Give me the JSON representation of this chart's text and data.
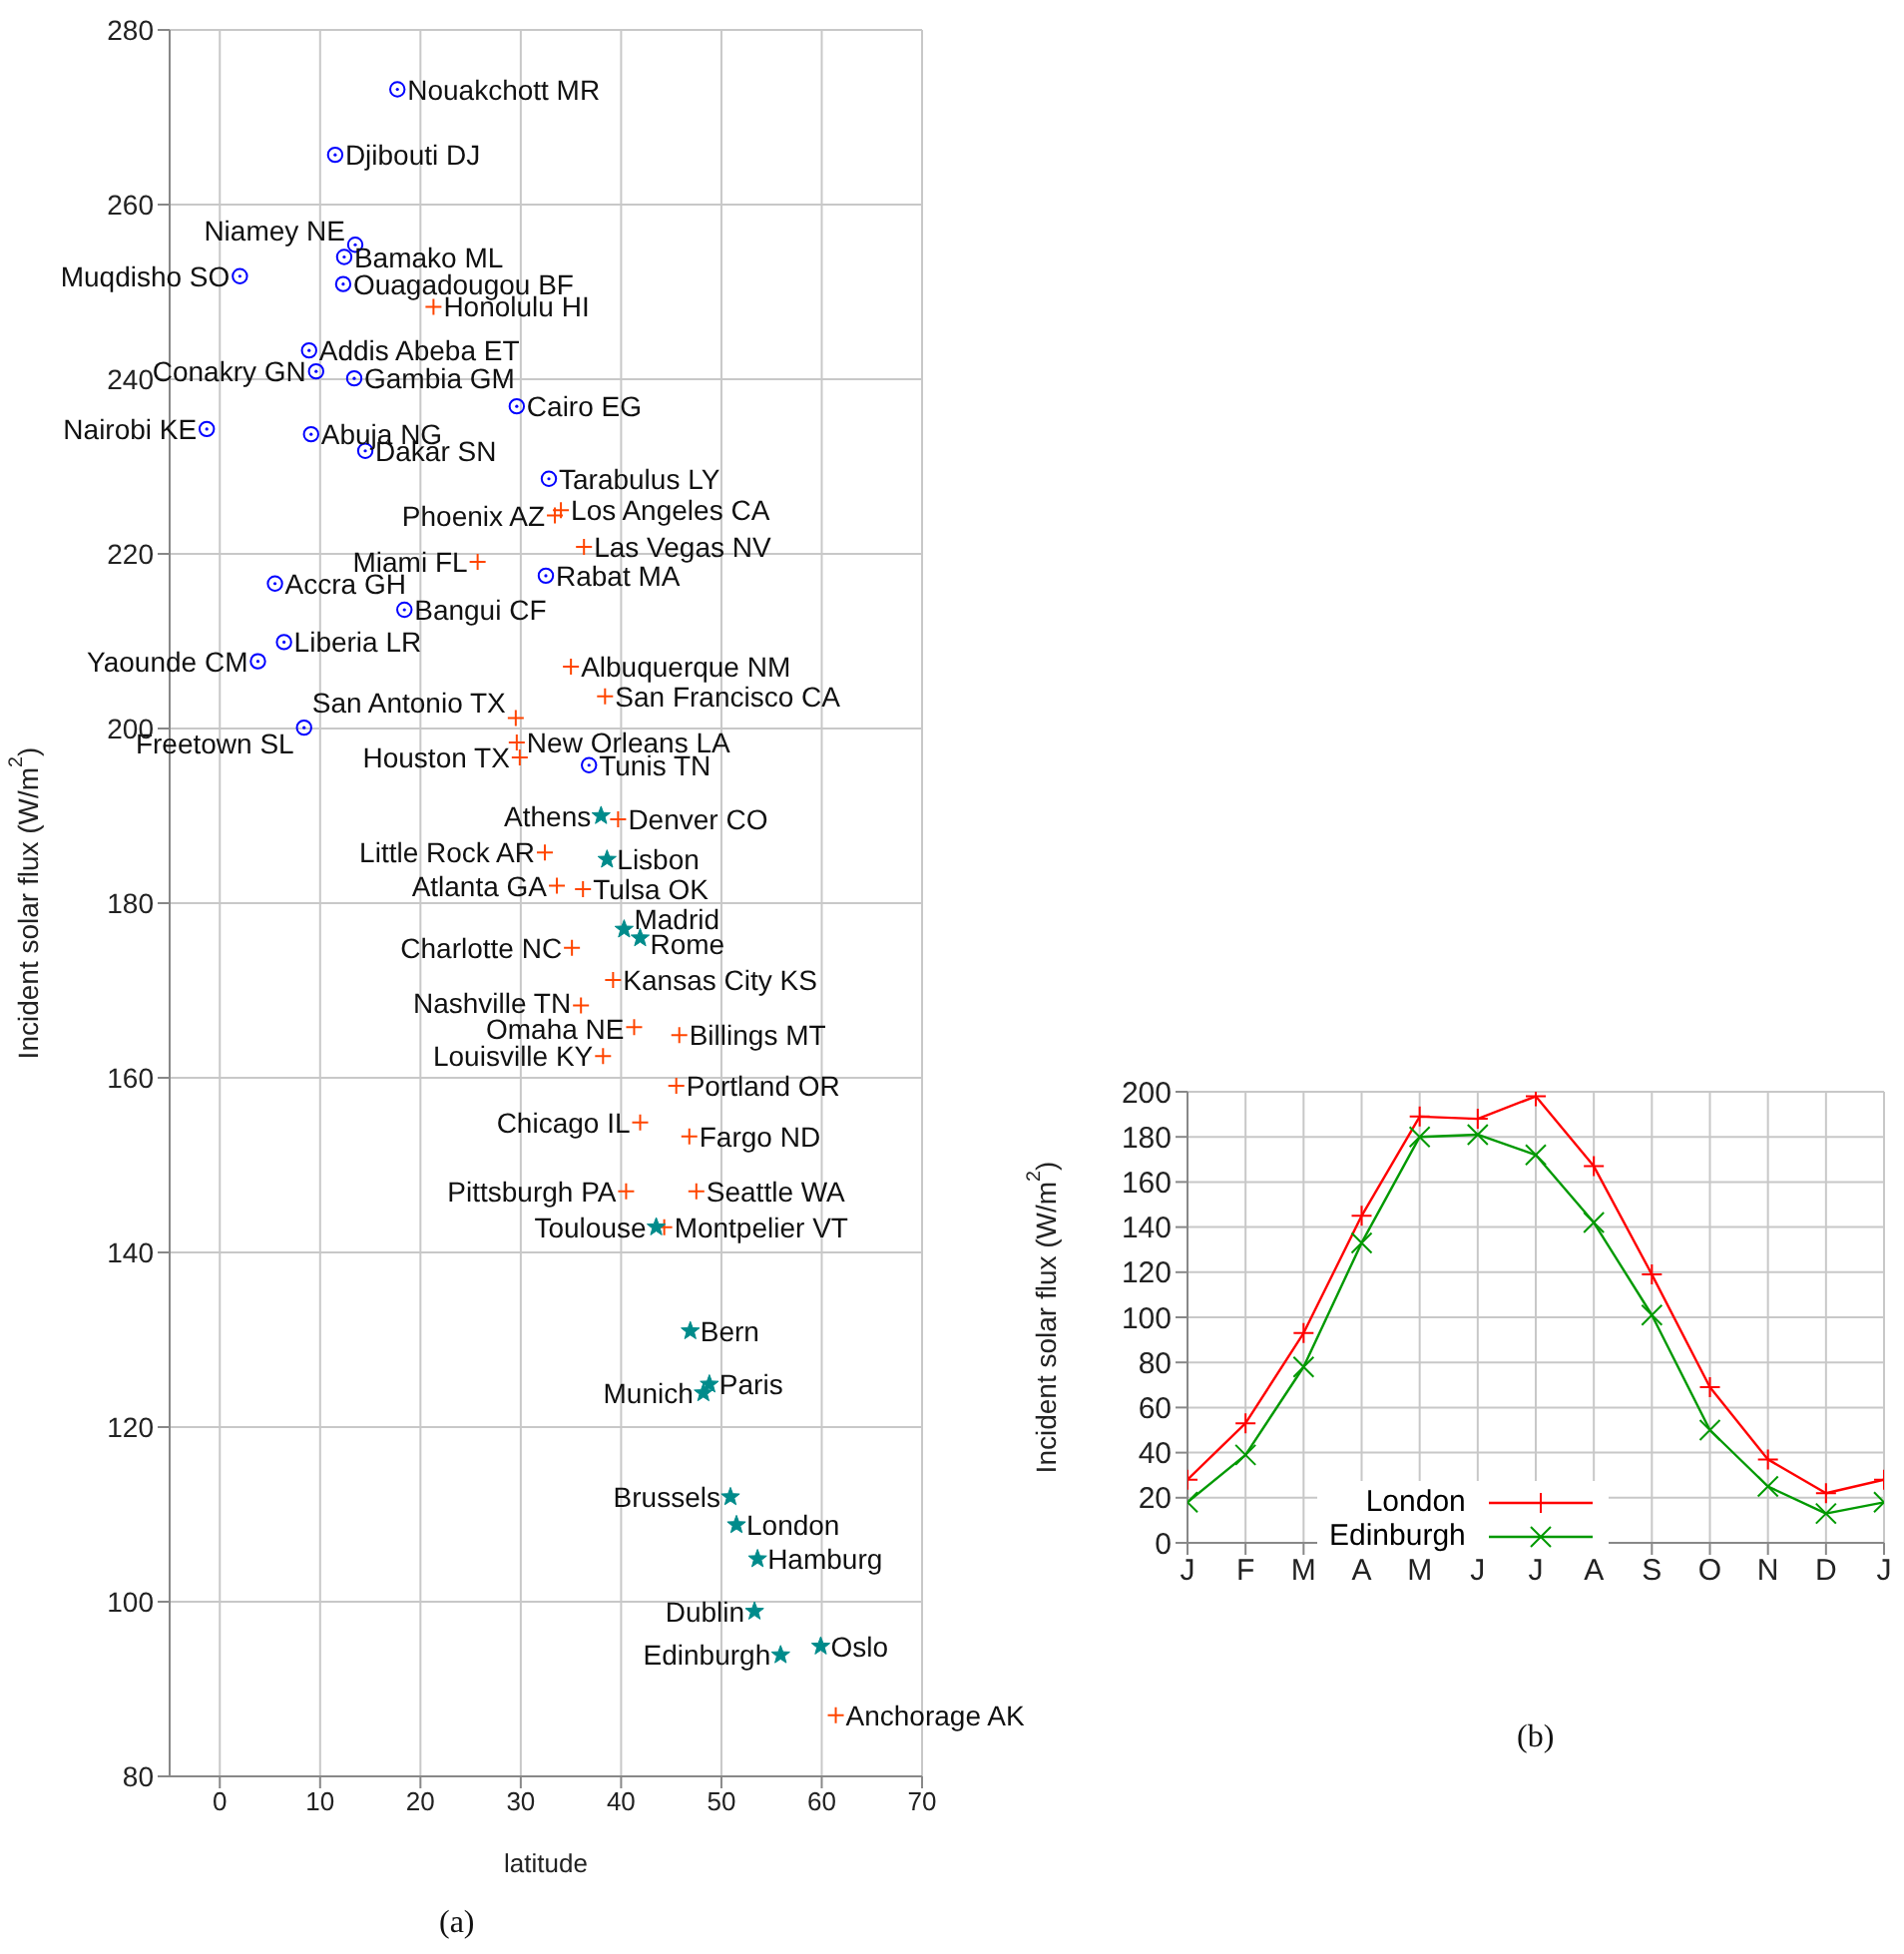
{
  "chart_data": [
    {
      "type": "scatter",
      "xlabel": "latitude",
      "ylabel": "Incident solar flux (W/m$^{2}$)",
      "xlim": [
        -5,
        70
      ],
      "xticks": [
        0,
        10,
        20,
        30,
        40,
        50,
        60,
        70
      ],
      "ylim": [
        80,
        280
      ],
      "yticks": [
        80,
        100,
        120,
        140,
        160,
        180,
        200,
        220,
        240,
        260,
        280
      ],
      "grid": true,
      "legend": false,
      "series": [
        {
          "color": "#0000ff",
          "marker": "circle",
          "x": [
            17.7,
            11.5,
            13.5,
            12.4,
            2.0,
            12.3,
            8.9,
            9.6,
            13.4,
            29.6,
            -1.3,
            9.1,
            14.5,
            32.8,
            32.5,
            5.5,
            18.4,
            6.4,
            3.8,
            8.4,
            36.8
          ],
          "values": [
            273.2,
            265.7,
            255.4,
            254.0,
            251.8,
            250.9,
            243.3,
            240.9,
            240.1,
            236.9,
            234.3,
            233.7,
            231.8,
            228.6,
            217.5,
            216.6,
            213.6,
            209.9,
            207.7,
            200.1,
            195.8
          ]
        },
        {
          "color": "#ff4500",
          "marker": "cross",
          "x": [
            21.3,
            33.4,
            34.0,
            36.3,
            25.7,
            35.0,
            38.4,
            29.5,
            29.6,
            29.9,
            39.7,
            32.4,
            33.6,
            36.2,
            35.1,
            39.2,
            36.0,
            41.3,
            45.8,
            38.2,
            45.5,
            41.9,
            46.8,
            40.5,
            47.5,
            44.3,
            61.4
          ],
          "values": [
            248.3,
            224.4,
            225.0,
            220.8,
            219.1,
            207.1,
            203.7,
            201.2,
            198.4,
            196.7,
            189.6,
            185.8,
            182.0,
            181.6,
            174.9,
            171.2,
            168.3,
            165.8,
            164.9,
            162.5,
            159.1,
            154.9,
            153.3,
            147.0,
            147.0,
            142.9,
            87.0
          ]
        },
        {
          "color": "#008b8b",
          "marker": "star",
          "x": [
            38.0,
            38.6,
            40.3,
            41.9,
            43.5,
            46.9,
            48.8,
            48.2,
            50.9,
            51.5,
            53.6,
            53.3,
            55.9,
            59.9
          ],
          "values": [
            190.0,
            185.0,
            177.0,
            176.0,
            142.9,
            131.0,
            124.9,
            123.9,
            112.0,
            108.8,
            104.9,
            98.9,
            93.9,
            94.9
          ]
        }
      ],
      "annotations": [
        {
          "text": "Nouakchott MR",
          "x": 17.7,
          "y": 273.2
        },
        {
          "text": "Djibouti DJ",
          "x": 11.5,
          "y": 265.7
        },
        {
          "text": "Niamey NE",
          "x": 13.5,
          "y": 255.4
        },
        {
          "text": "Bamako ML",
          "x": 12.4,
          "y": 254.0
        },
        {
          "text": "Muqdisho SO",
          "x": 2.0,
          "y": 251.8
        },
        {
          "text": "Ouagadougou BF",
          "x": 12.3,
          "y": 250.9
        },
        {
          "text": "Addis Abeba ET",
          "x": 8.9,
          "y": 243.3
        },
        {
          "text": "Conakry GN",
          "x": 9.6,
          "y": 240.9
        },
        {
          "text": "Gambia GM",
          "x": 13.4,
          "y": 240.1
        },
        {
          "text": "Cairo EG",
          "x": 29.6,
          "y": 236.9
        },
        {
          "text": "Nairobi KE",
          "x": -1.3,
          "y": 234.3
        },
        {
          "text": "Abuja NG",
          "x": 9.1,
          "y": 233.7
        },
        {
          "text": "Dakar SN",
          "x": 14.5,
          "y": 231.8
        },
        {
          "text": "Tarabulus LY",
          "x": 32.8,
          "y": 228.6
        },
        {
          "text": "Rabat MA",
          "x": 32.5,
          "y": 217.5
        },
        {
          "text": "Accra GH",
          "x": 5.5,
          "y": 216.6
        },
        {
          "text": "Bangui CF",
          "x": 18.4,
          "y": 213.6
        },
        {
          "text": "Liberia LR",
          "x": 6.4,
          "y": 209.9
        },
        {
          "text": "Yaounde CM",
          "x": 3.8,
          "y": 207.7
        },
        {
          "text": "Freetown SL",
          "x": 8.4,
          "y": 200.1
        },
        {
          "text": "Tunis TN",
          "x": 36.8,
          "y": 195.8
        },
        {
          "text": "Honolulu HI",
          "x": 21.3,
          "y": 248.3
        },
        {
          "text": "Phoenix AZ",
          "x": 33.4,
          "y": 224.4
        },
        {
          "text": "Los Angeles CA",
          "x": 34.0,
          "y": 225.0
        },
        {
          "text": "Las Vegas NV",
          "x": 36.3,
          "y": 220.8
        },
        {
          "text": "Miami FL",
          "x": 25.7,
          "y": 219.1
        },
        {
          "text": "Albuquerque NM",
          "x": 35.0,
          "y": 207.1
        },
        {
          "text": "San Francisco CA",
          "x": 38.4,
          "y": 203.7
        },
        {
          "text": "San Antonio TX",
          "x": 29.5,
          "y": 201.2
        },
        {
          "text": "New Orleans LA",
          "x": 29.6,
          "y": 198.4
        },
        {
          "text": "Houston TX",
          "x": 29.9,
          "y": 196.7
        },
        {
          "text": "Denver CO",
          "x": 39.7,
          "y": 189.6
        },
        {
          "text": "Little Rock AR",
          "x": 32.4,
          "y": 185.8
        },
        {
          "text": "Atlanta GA",
          "x": 33.6,
          "y": 182.0
        },
        {
          "text": "Tulsa OK",
          "x": 36.2,
          "y": 181.6
        },
        {
          "text": "Charlotte NC",
          "x": 35.1,
          "y": 174.9
        },
        {
          "text": "Kansas City KS",
          "x": 39.2,
          "y": 171.2
        },
        {
          "text": "Nashville TN",
          "x": 36.0,
          "y": 168.3
        },
        {
          "text": "Omaha NE",
          "x": 41.3,
          "y": 165.8
        },
        {
          "text": "Billings MT",
          "x": 45.8,
          "y": 164.9
        },
        {
          "text": "Louisville KY",
          "x": 38.2,
          "y": 162.5
        },
        {
          "text": "Portland OR",
          "x": 45.5,
          "y": 159.1
        },
        {
          "text": "Chicago IL",
          "x": 41.9,
          "y": 154.9
        },
        {
          "text": "Fargo ND",
          "x": 46.8,
          "y": 153.3
        },
        {
          "text": "Pittsburgh PA",
          "x": 40.5,
          "y": 147.0
        },
        {
          "text": "Seattle WA",
          "x": 47.5,
          "y": 147.0
        },
        {
          "text": "Montpelier VT",
          "x": 44.3,
          "y": 142.9
        },
        {
          "text": "Anchorage AK",
          "x": 61.4,
          "y": 87.0
        },
        {
          "text": "Athens",
          "x": 38.0,
          "y": 190.0
        },
        {
          "text": "Lisbon",
          "x": 38.6,
          "y": 185.0
        },
        {
          "text": "Madrid",
          "x": 40.3,
          "y": 177.0
        },
        {
          "text": "Rome",
          "x": 41.9,
          "y": 176.0
        },
        {
          "text": "Toulouse",
          "x": 43.5,
          "y": 142.9
        },
        {
          "text": "Bern",
          "x": 46.9,
          "y": 131.0
        },
        {
          "text": "Paris",
          "x": 48.8,
          "y": 124.9
        },
        {
          "text": "Munich",
          "x": 48.2,
          "y": 123.9
        },
        {
          "text": "Brussels",
          "x": 50.9,
          "y": 112.0
        },
        {
          "text": "London",
          "x": 51.5,
          "y": 108.8
        },
        {
          "text": "Hamburg",
          "x": 53.6,
          "y": 104.9
        },
        {
          "text": "Dublin",
          "x": 53.3,
          "y": 98.9
        },
        {
          "text": "Edinburgh",
          "x": 55.9,
          "y": 93.9
        },
        {
          "text": "Oslo",
          "x": 59.9,
          "y": 94.9
        },
        "(a)"
      ]
    },
    {
      "type": "line",
      "ylabel": "Incident solar flux (W/m$^{2}$)",
      "categories": [
        "J",
        "F",
        "M",
        "A",
        "M",
        "J",
        "J",
        "A",
        "S",
        "O",
        "N",
        "D",
        "J"
      ],
      "ylim": [
        0,
        200
      ],
      "yticks": [
        0,
        20,
        40,
        60,
        80,
        100,
        120,
        140,
        160,
        180,
        200
      ],
      "grid": true,
      "legend": "bottom",
      "series": [
        {
          "name": "London",
          "color": "#ff0000",
          "marker": "cross",
          "values": [
            28,
            53,
            93,
            145,
            189,
            188,
            198,
            167,
            119,
            69,
            37,
            22,
            28
          ]
        },
        {
          "name": "Edinburgh",
          "color": "#009900",
          "marker": "cross",
          "values": [
            18,
            39,
            78,
            133,
            180,
            181,
            172,
            142,
            101,
            50,
            25,
            13,
            18
          ]
        }
      ],
      "annotations": [
        "(b)"
      ]
    }
  ]
}
